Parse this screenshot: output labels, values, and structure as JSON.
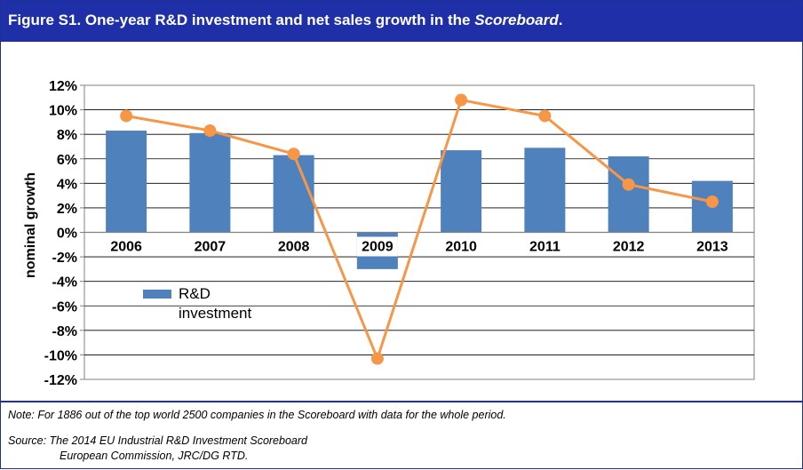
{
  "figure": {
    "title_prefix": "Figure S1. One-year R&D investment and net sales growth in the ",
    "title_emph": "Scoreboard",
    "title_suffix": "."
  },
  "notes": {
    "note": "Note: For 1886 out of the top world 2500 companies in the Scoreboard with data for the whole period.",
    "source_line1": "Source: The 2014 EU Industrial R&D Investment Scoreboard",
    "source_line2": "European Commission, JRC/DG RTD."
  },
  "chart_data": {
    "type": "bar",
    "categories": [
      "2006",
      "2007",
      "2008",
      "2009",
      "2010",
      "2011",
      "2012",
      "2013"
    ],
    "series": [
      {
        "name": "R&D investment",
        "kind": "bar",
        "color": "#4f81bd",
        "values": [
          8.3,
          8.1,
          6.3,
          -3.0,
          6.7,
          6.9,
          6.2,
          4.2
        ]
      },
      {
        "name": "",
        "kind": "line",
        "color": "#f79646",
        "values": [
          9.5,
          8.3,
          6.4,
          -10.3,
          10.8,
          9.5,
          3.9,
          2.5
        ]
      }
    ],
    "ylabel": "nominal growth",
    "ylim": [
      -12,
      12
    ],
    "yticks": [
      "12%",
      "10%",
      "8%",
      "6%",
      "4%",
      "2%",
      "0%",
      "-2%",
      "-4%",
      "-6%",
      "-8%",
      "-10%",
      "-12%"
    ],
    "grid": true,
    "legend_position": "bottom-left"
  }
}
